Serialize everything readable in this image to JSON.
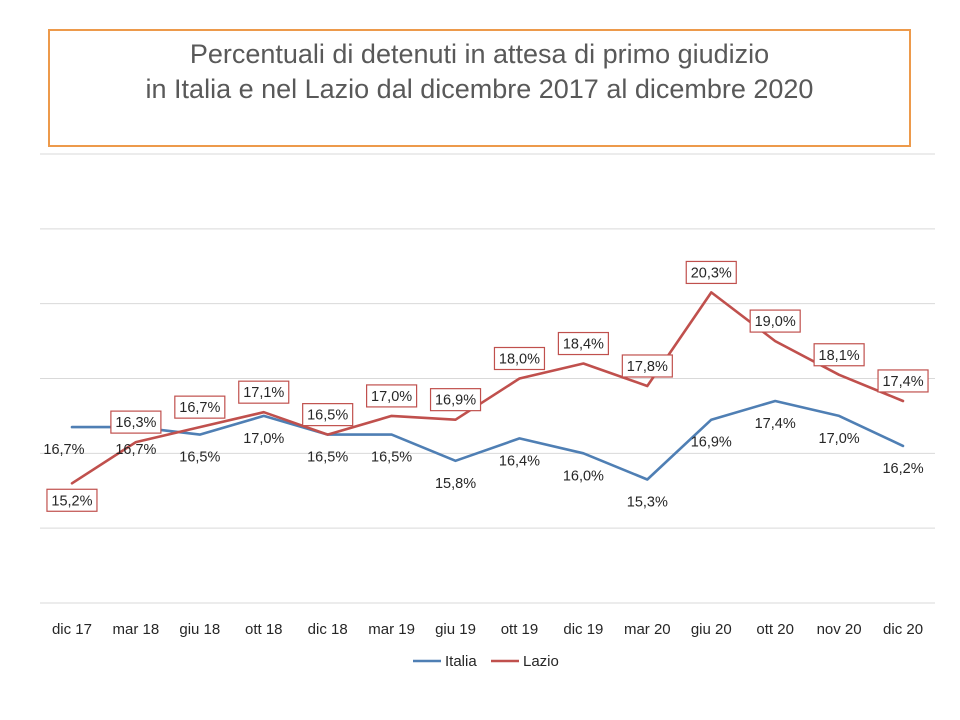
{
  "chart_data": {
    "type": "line",
    "title_lines": [
      "Percentuali di detenuti in attesa di primo giudizio",
      "in Italia e nel Lazio dal dicembre 2017 al dicembre 2020"
    ],
    "categories": [
      "dic 17",
      "mar 18",
      "giu 18",
      "ott 18",
      "dic 18",
      "mar 19",
      "giu 19",
      "ott 19",
      "dic 19",
      "mar 20",
      "giu 20",
      "ott 20",
      "nov 20",
      "dic 20"
    ],
    "series": [
      {
        "name": "Italia",
        "color": "#4F7FB4",
        "values": [
          16.7,
          16.7,
          16.5,
          17.0,
          16.5,
          16.5,
          15.8,
          16.4,
          16.0,
          15.3,
          16.9,
          17.4,
          17.0,
          16.2
        ],
        "labels": [
          "16,7%",
          "16,7%",
          "16,5%",
          "17,0%",
          "16,5%",
          "16,5%",
          "15,8%",
          "16,4%",
          "16,0%",
          "15,3%",
          "16,9%",
          "17,4%",
          "17,0%",
          "16,2%"
        ]
      },
      {
        "name": "Lazio",
        "color": "#C0504D",
        "values": [
          15.2,
          16.3,
          16.7,
          17.1,
          16.5,
          17.0,
          16.9,
          18.0,
          18.4,
          17.8,
          20.3,
          19.0,
          18.1,
          17.4
        ],
        "labels": [
          "15,2%",
          "16,3%",
          "16,7%",
          "17,1%",
          "16,5%",
          "17,0%",
          "16,9%",
          "18,0%",
          "18,4%",
          "17,8%",
          "20,3%",
          "19,0%",
          "18,1%",
          "17,4%"
        ]
      }
    ],
    "ylim": [
      12,
      24
    ],
    "grid": true,
    "legend_position": "bottom",
    "label_box_color": "#C0504D",
    "title_border_color": "#ED9A4B"
  }
}
